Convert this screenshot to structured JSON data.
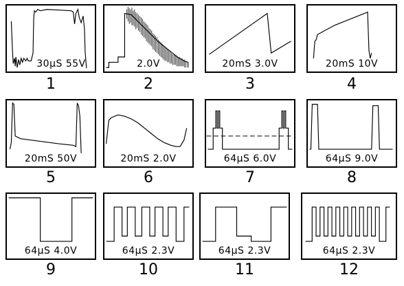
{
  "panels": [
    {
      "id": 1,
      "label": "1",
      "scale": "30μS  55V"
    },
    {
      "id": 2,
      "label": "2",
      "scale": "2.0V"
    },
    {
      "id": 3,
      "label": "3",
      "scale": "20mS  3.0V"
    },
    {
      "id": 4,
      "label": "4",
      "scale": "20mS  10V"
    },
    {
      "id": 5,
      "label": "5",
      "scale": "20mS  50V"
    },
    {
      "id": 6,
      "label": "6",
      "scale": "20mS  2.0V"
    },
    {
      "id": 7,
      "label": "7",
      "scale": "64μS  6.0V"
    },
    {
      "id": 8,
      "label": "8",
      "scale": "64μS  9.0V"
    },
    {
      "id": 9,
      "label": "9",
      "scale": "64μS  4.0V"
    },
    {
      "id": 10,
      "label": "10",
      "scale": "64μS  2.3V"
    },
    {
      "id": 11,
      "label": "11",
      "scale": "64μS  2.3V"
    },
    {
      "id": 12,
      "label": "12",
      "scale": "64μS  2.3V"
    }
  ]
}
